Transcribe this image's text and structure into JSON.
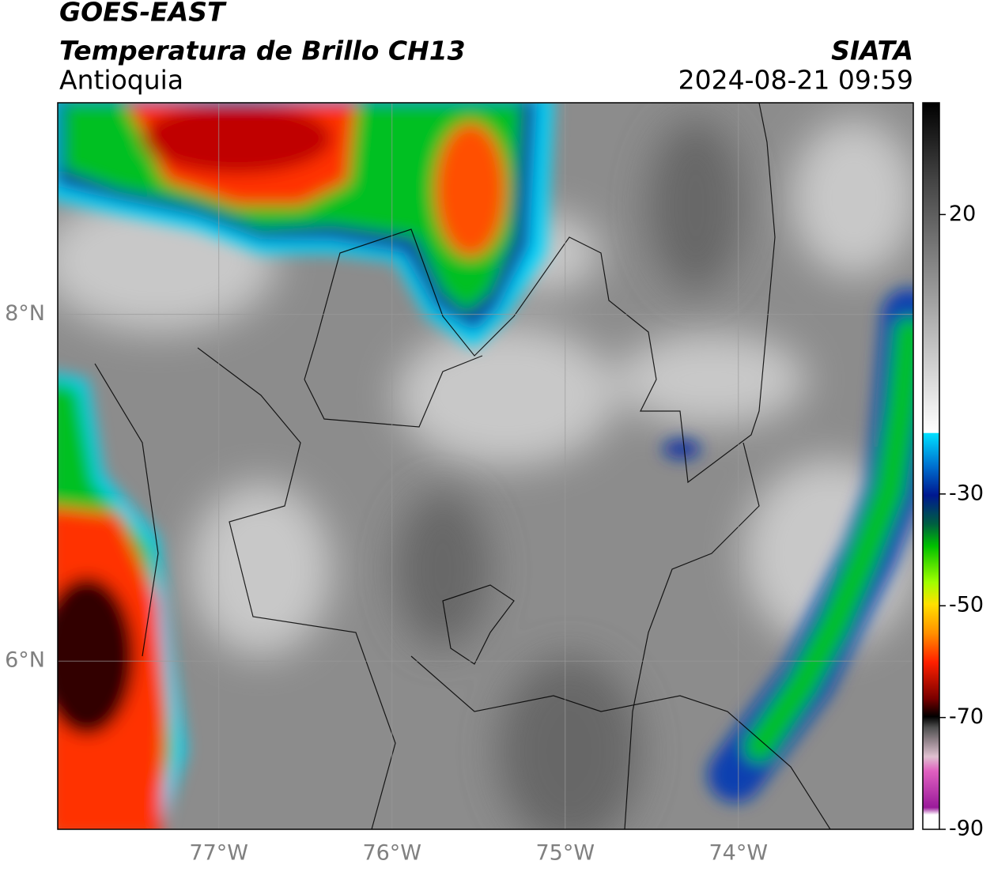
{
  "header": {
    "title": "GOES-EAST",
    "subtitle": "Temperatura de Brillo CH13",
    "region": "Antioquia",
    "source": "SIATA",
    "datetime": "2024-08-21 09:59"
  },
  "map": {
    "xlim": [
      -77.93,
      -72.99
    ],
    "ylim": [
      5.03,
      9.22
    ],
    "xticks": [
      {
        "value": -77,
        "label": "77°W"
      },
      {
        "value": -76,
        "label": "76°W"
      },
      {
        "value": -75,
        "label": "75°W"
      },
      {
        "value": -74,
        "label": "74°W"
      }
    ],
    "yticks": [
      {
        "value": 8,
        "label": "8°N"
      },
      {
        "value": 6,
        "label": "6°N"
      }
    ]
  },
  "colorbar": {
    "lim": [
      -90,
      40
    ],
    "ticks": [
      20,
      -30,
      -50,
      -70,
      -90
    ]
  }
}
